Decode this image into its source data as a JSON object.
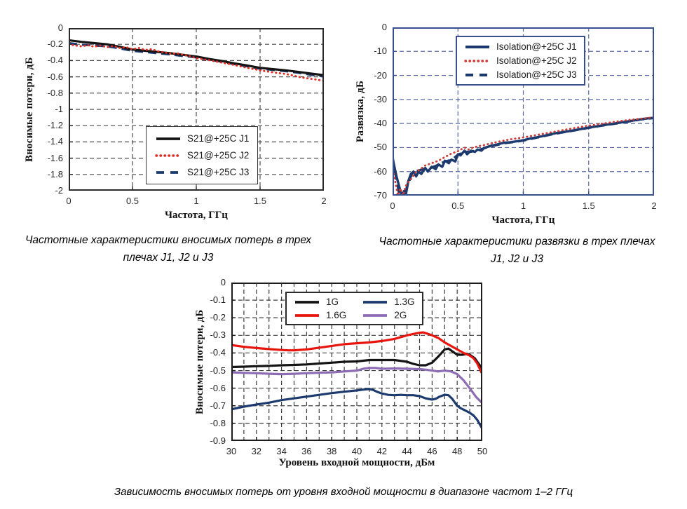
{
  "captions": {
    "fig1": {
      "line1": "Частотные характеристики вносимых потерь в трех",
      "line2": "плечах J1, J2 и J3"
    },
    "fig2": {
      "line1": "Частотные характеристики развязки в трех плечах",
      "line2": "J1, J2 и J3"
    },
    "fig3": {
      "line1": "Зависимость вносимых потерь от уровня входной мощности в диапазоне частот 1–2 ГГц"
    }
  },
  "colors": {
    "black": "#141414",
    "red": "#dd2420",
    "navy": "#1c3a6e",
    "purple": "#8d6cb4"
  },
  "chart_data": [
    {
      "id": "insertion-loss-vs-frequency",
      "type": "line",
      "title": "",
      "xlabel": "Частота, ГГц",
      "ylabel": "Вносимые потери, дБ",
      "xlim": [
        0,
        2
      ],
      "ylim": [
        -2,
        0
      ],
      "xticks": [
        0,
        0.5,
        1,
        1.5,
        2
      ],
      "xtick_labels": [
        "0",
        "0.5",
        "1",
        "1.5",
        "2"
      ],
      "yticks": [
        0,
        -0.2,
        -0.4,
        -0.6,
        -0.8,
        -1,
        -1.2,
        -1.4,
        -1.6,
        -1.8,
        -2
      ],
      "ytick_labels": [
        "0",
        "-0.2",
        "-0.4",
        "-0.6",
        "-0.8",
        "-1",
        "-1.2",
        "-1.4",
        "-1.6",
        "-1.8",
        "-2"
      ],
      "xgrid": [
        0.5,
        1,
        1.5
      ],
      "ygrid": [
        -0.2,
        -0.4,
        -0.6,
        -0.8,
        -1,
        -1.2,
        -1.4,
        -1.6,
        -1.8
      ],
      "grid": true,
      "grid_color": "#4d4d4d",
      "frame_color": "#2b2b2b",
      "tick_color": "#2a2a2a",
      "legend": {
        "position": "inside-lower-middle",
        "cols": 1,
        "inset_x": 110,
        "inset_y": 140,
        "border_color": "#3a3a3a"
      },
      "draw_order": [
        2,
        0,
        1
      ],
      "series": [
        {
          "name": "S21@+25C J1",
          "color": "#141414",
          "style": "solid",
          "width": 3.2,
          "x": [
            0,
            0.1,
            0.2,
            0.3,
            0.4,
            0.5,
            0.6,
            0.7,
            0.8,
            0.9,
            1.0,
            1.1,
            1.2,
            1.3,
            1.4,
            1.5,
            1.6,
            1.7,
            1.8,
            1.9,
            2.0
          ],
          "y": [
            -0.15,
            -0.17,
            -0.185,
            -0.2,
            -0.23,
            -0.265,
            -0.28,
            -0.295,
            -0.31,
            -0.33,
            -0.35,
            -0.38,
            -0.405,
            -0.435,
            -0.46,
            -0.49,
            -0.505,
            -0.52,
            -0.54,
            -0.56,
            -0.58
          ]
        },
        {
          "name": "S21@+25C J2",
          "color": "#e02a1f",
          "style": "dotted",
          "width": 2.8,
          "x": [
            0,
            0.05,
            0.1,
            0.15,
            0.2,
            0.25,
            0.3,
            0.35,
            0.4,
            0.45,
            0.5,
            0.55,
            0.6,
            0.65,
            0.7,
            0.75,
            0.8,
            0.85,
            0.9,
            0.95,
            1.0,
            1.1,
            1.2,
            1.3,
            1.4,
            1.5,
            1.6,
            1.7,
            1.75,
            1.8,
            1.85,
            1.9,
            1.95,
            2.0
          ],
          "y": [
            -0.2,
            -0.215,
            -0.225,
            -0.21,
            -0.23,
            -0.215,
            -0.235,
            -0.22,
            -0.245,
            -0.235,
            -0.26,
            -0.245,
            -0.27,
            -0.26,
            -0.285,
            -0.3,
            -0.315,
            -0.31,
            -0.33,
            -0.345,
            -0.37,
            -0.395,
            -0.425,
            -0.455,
            -0.49,
            -0.52,
            -0.545,
            -0.565,
            -0.58,
            -0.6,
            -0.615,
            -0.625,
            -0.635,
            -0.65
          ]
        },
        {
          "name": "S21@+25C J3",
          "color": "#1c3a6e",
          "style": "dashed",
          "width": 3.2,
          "x": [
            0,
            0.1,
            0.2,
            0.3,
            0.4,
            0.5,
            0.6,
            0.7,
            0.8,
            0.9,
            1.0,
            1.1,
            1.2,
            1.3,
            1.4,
            1.5,
            1.6,
            1.7,
            1.8,
            1.9,
            2.0
          ],
          "y": [
            -0.185,
            -0.205,
            -0.215,
            -0.225,
            -0.25,
            -0.28,
            -0.295,
            -0.31,
            -0.325,
            -0.345,
            -0.36,
            -0.39,
            -0.415,
            -0.445,
            -0.47,
            -0.5,
            -0.515,
            -0.53,
            -0.55,
            -0.575,
            -0.595
          ]
        }
      ]
    },
    {
      "id": "isolation-vs-frequency",
      "type": "line",
      "title": "",
      "xlabel": "Частота, ГГц",
      "ylabel": "Развязка, дБ",
      "xlim": [
        0,
        2
      ],
      "ylim": [
        -70,
        0
      ],
      "xticks": [
        0,
        0.5,
        1,
        1.5,
        2
      ],
      "xtick_labels": [
        "0",
        "0.5",
        "1",
        "1.5",
        "2"
      ],
      "yticks": [
        0,
        -10,
        -20,
        -30,
        -40,
        -50,
        -60,
        -70
      ],
      "ytick_labels": [
        "0",
        "-10",
        "-20",
        "-30",
        "-40",
        "-50",
        "-60",
        "-70"
      ],
      "xgrid": [
        0.5,
        1,
        1.5
      ],
      "ygrid": [
        -10,
        -20,
        -30,
        -40,
        -50,
        -60
      ],
      "grid": true,
      "grid_color": "#5a69a2",
      "frame_color": "#3a4f8e",
      "tick_color": "#2a2a2a",
      "legend": {
        "position": "inside-upper-middle",
        "cols": 1,
        "inset_x": 90,
        "inset_y": 12,
        "border_color": "#3a4f8e"
      },
      "draw_order": [
        2,
        0,
        1
      ],
      "series": [
        {
          "name": "Isolation@+25C J1",
          "color": "#1c3a6e",
          "style": "solid",
          "width": 3.4,
          "x": [
            0,
            0.01,
            0.03,
            0.05,
            0.07,
            0.09,
            0.1,
            0.12,
            0.14,
            0.16,
            0.18,
            0.2,
            0.22,
            0.25,
            0.27,
            0.3,
            0.33,
            0.35,
            0.38,
            0.4,
            0.43,
            0.45,
            0.48,
            0.5,
            0.52,
            0.55,
            0.57,
            0.6,
            0.63,
            0.65,
            0.68,
            0.7,
            0.75,
            0.8,
            0.85,
            0.9,
            0.95,
            1.0,
            1.05,
            1.1,
            1.15,
            1.2,
            1.25,
            1.3,
            1.35,
            1.4,
            1.45,
            1.5,
            1.55,
            1.6,
            1.65,
            1.7,
            1.75,
            1.8,
            1.85,
            1.9,
            1.95,
            2.0
          ],
          "y": [
            -54,
            -57,
            -62,
            -66,
            -70,
            -68,
            -70,
            -64,
            -61,
            -60,
            -62,
            -60,
            -61,
            -58.5,
            -60,
            -58,
            -59,
            -57,
            -58,
            -55.5,
            -56.5,
            -55,
            -55.8,
            -52.8,
            -53.3,
            -51.3,
            -52.8,
            -51.3,
            -51.8,
            -50.8,
            -51.3,
            -50.2,
            -49.3,
            -48.7,
            -48,
            -47.8,
            -47.4,
            -47,
            -46.3,
            -45.8,
            -45.2,
            -44.6,
            -44,
            -43.6,
            -43.2,
            -42.7,
            -42.2,
            -41.7,
            -41.3,
            -40.8,
            -40.4,
            -40,
            -39.5,
            -39.1,
            -38.7,
            -38.2,
            -37.9,
            -37.6
          ]
        },
        {
          "name": "Isolation@+25C J2",
          "color": "#cc3b35",
          "style": "dotted",
          "width": 2.8,
          "x": [
            0.01,
            0.02,
            0.04,
            0.06,
            0.08,
            0.1,
            0.12,
            0.15,
            0.18,
            0.2,
            0.25,
            0.3,
            0.35,
            0.4,
            0.45,
            0.5,
            0.55,
            0.58,
            0.6,
            0.65,
            0.7,
            0.75,
            0.8,
            0.9,
            1.0,
            1.1,
            1.2,
            1.3,
            1.4,
            1.5,
            1.6,
            1.7,
            1.8,
            1.9,
            2.0
          ],
          "y": [
            -61,
            -64,
            -70,
            -67,
            -70,
            -66,
            -64.5,
            -62.5,
            -60,
            -59.5,
            -57.5,
            -56.5,
            -55.5,
            -54,
            -52.5,
            -51.5,
            -50,
            -50.8,
            -50.3,
            -49.5,
            -49,
            -48.3,
            -47.7,
            -46.6,
            -45.8,
            -44.8,
            -43.8,
            -42.8,
            -41.8,
            -40.9,
            -40.1,
            -39.3,
            -38.6,
            -38,
            -37.4
          ]
        },
        {
          "name": "Isolation@+25C J3",
          "color": "#1c3a6e",
          "style": "dashed",
          "width": 3.4,
          "x": [
            0,
            0.05,
            0.1,
            0.15,
            0.2,
            0.25,
            0.3,
            0.35,
            0.4,
            0.45,
            0.5,
            0.55,
            0.6,
            0.65,
            0.7,
            0.75,
            0.8,
            0.85,
            0.9,
            0.95,
            1.0,
            1.1,
            1.2,
            1.3,
            1.4,
            1.5,
            1.6,
            1.7,
            1.8,
            1.9,
            2.0
          ],
          "y": [
            -54.5,
            -69,
            -68,
            -60.5,
            -59.5,
            -58.8,
            -58.3,
            -57.2,
            -55.8,
            -55.2,
            -53,
            -51.8,
            -51.7,
            -51.2,
            -50.3,
            -49.5,
            -48.9,
            -48.2,
            -47.9,
            -47.5,
            -47.1,
            -45.9,
            -44.7,
            -43.7,
            -42.8,
            -41.8,
            -40.9,
            -40.1,
            -39.2,
            -38.3,
            -37.7
          ]
        }
      ]
    },
    {
      "id": "insertion-loss-vs-input-power",
      "type": "line",
      "title": "",
      "xlabel": "Уровень входной мощности, дБм",
      "ylabel": "Вносимые потери, дБ",
      "xlim": [
        30,
        50
      ],
      "ylim": [
        -0.9,
        0
      ],
      "xticks": [
        30,
        32,
        34,
        36,
        38,
        40,
        42,
        44,
        46,
        48,
        50
      ],
      "xtick_labels": [
        "30",
        "32",
        "34",
        "36",
        "38",
        "40",
        "42",
        "44",
        "46",
        "48",
        "50"
      ],
      "yticks": [
        0,
        -0.1,
        -0.2,
        -0.3,
        -0.4,
        -0.5,
        -0.6,
        -0.7,
        -0.8,
        -0.9
      ],
      "ytick_labels": [
        "0",
        "-0.1",
        "-0.2",
        "-0.3",
        "-0.4",
        "-0.5",
        "-0.6",
        "-0.7",
        "-0.8",
        "-0.9"
      ],
      "xgrid": [
        31,
        32,
        33,
        34,
        35,
        36,
        37,
        38,
        39,
        40,
        41,
        42,
        43,
        44,
        45,
        46,
        47,
        48,
        49
      ],
      "ygrid": [
        -0.1,
        -0.2,
        -0.3,
        -0.4,
        -0.5,
        -0.6,
        -0.7,
        -0.8
      ],
      "grid": true,
      "grid_color": "#3c3c3c",
      "frame_color": "#1c1c1c",
      "tick_color": "#222222",
      "legend": {
        "position": "inside-upper-middle",
        "cols": 2,
        "inset_x": 77,
        "inset_y": 13,
        "border_color": "#2a2a2a"
      },
      "draw_order": [
        1,
        3,
        0,
        2
      ],
      "series": [
        {
          "name": "1G",
          "color": "#141414",
          "style": "solid",
          "width": 3.2,
          "x": [
            30,
            31,
            32,
            33,
            34,
            35,
            36,
            37,
            38,
            39,
            40,
            41,
            42,
            43,
            44,
            44.5,
            45,
            45.5,
            46,
            46.5,
            47,
            47.3,
            47.6,
            48,
            48.4,
            48.8,
            49,
            49.4,
            49.7,
            50
          ],
          "y": [
            -0.48,
            -0.478,
            -0.475,
            -0.473,
            -0.47,
            -0.468,
            -0.465,
            -0.46,
            -0.455,
            -0.45,
            -0.448,
            -0.44,
            -0.44,
            -0.44,
            -0.45,
            -0.462,
            -0.47,
            -0.47,
            -0.455,
            -0.42,
            -0.38,
            -0.375,
            -0.39,
            -0.41,
            -0.41,
            -0.405,
            -0.41,
            -0.43,
            -0.46,
            -0.49
          ]
        },
        {
          "name": "1.3G",
          "color": "#1c3a6e",
          "style": "solid",
          "width": 3.2,
          "x": [
            30,
            31,
            32,
            33,
            34,
            35,
            36,
            37,
            38,
            39,
            40,
            40.5,
            41,
            41.3,
            41.6,
            42,
            42.5,
            43,
            43.5,
            44,
            44.5,
            45,
            45.5,
            46,
            46.3,
            46.6,
            47,
            47.3,
            47.6,
            48,
            48.3,
            48.6,
            49,
            49.3,
            49.6,
            50
          ],
          "y": [
            -0.72,
            -0.705,
            -0.693,
            -0.682,
            -0.668,
            -0.658,
            -0.648,
            -0.638,
            -0.628,
            -0.62,
            -0.613,
            -0.608,
            -0.605,
            -0.61,
            -0.62,
            -0.63,
            -0.638,
            -0.64,
            -0.638,
            -0.64,
            -0.64,
            -0.645,
            -0.658,
            -0.665,
            -0.66,
            -0.648,
            -0.637,
            -0.64,
            -0.66,
            -0.7,
            -0.715,
            -0.725,
            -0.74,
            -0.755,
            -0.78,
            -0.83
          ]
        },
        {
          "name": "1.6G",
          "color": "#e8150f",
          "style": "solid",
          "width": 3.2,
          "x": [
            30,
            31,
            32,
            33,
            34,
            34.5,
            35,
            36,
            37,
            38,
            39,
            40,
            41,
            42,
            43,
            44,
            44.5,
            45,
            45.3,
            45.6,
            46,
            46.5,
            47,
            47.5,
            48,
            48.5,
            49,
            49.3,
            49.6,
            50
          ],
          "y": [
            -0.355,
            -0.365,
            -0.372,
            -0.378,
            -0.383,
            -0.385,
            -0.385,
            -0.38,
            -0.37,
            -0.36,
            -0.35,
            -0.345,
            -0.34,
            -0.332,
            -0.32,
            -0.3,
            -0.292,
            -0.285,
            -0.283,
            -0.29,
            -0.3,
            -0.315,
            -0.34,
            -0.36,
            -0.38,
            -0.4,
            -0.415,
            -0.43,
            -0.46,
            -0.52
          ]
        },
        {
          "name": "2G",
          "color": "#8d6cb4",
          "style": "solid",
          "width": 3.2,
          "x": [
            30,
            31,
            32,
            33,
            34,
            35,
            36,
            37,
            38,
            39,
            40,
            40.5,
            41,
            41.5,
            42,
            43,
            44,
            45,
            45.5,
            46,
            46.5,
            47,
            47.5,
            48,
            48.5,
            49,
            49.5,
            50
          ],
          "y": [
            -0.51,
            -0.513,
            -0.515,
            -0.518,
            -0.52,
            -0.518,
            -0.515,
            -0.512,
            -0.51,
            -0.505,
            -0.5,
            -0.49,
            -0.485,
            -0.485,
            -0.49,
            -0.488,
            -0.49,
            -0.492,
            -0.495,
            -0.5,
            -0.505,
            -0.5,
            -0.505,
            -0.52,
            -0.555,
            -0.6,
            -0.65,
            -0.685
          ]
        }
      ]
    }
  ]
}
